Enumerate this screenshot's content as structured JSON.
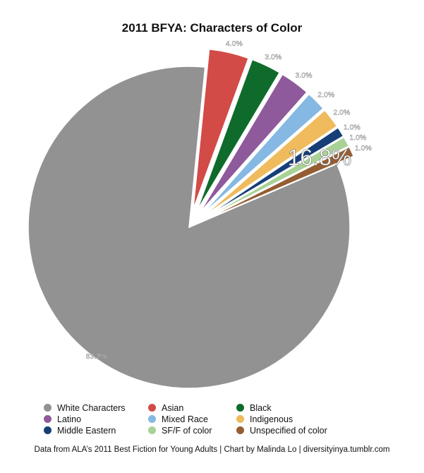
{
  "chart_data": {
    "type": "pie",
    "title": "2011 BFYA: Characters of Color",
    "slices": [
      {
        "name": "White Characters",
        "value": 83.2,
        "label": "83.2%",
        "color": "#929292"
      },
      {
        "name": "Asian",
        "value": 4.0,
        "label": "4.0%",
        "color": "#d24b46"
      },
      {
        "name": "Black",
        "value": 3.0,
        "label": "3.0%",
        "color": "#0f6b2b"
      },
      {
        "name": "Latino",
        "value": 3.0,
        "label": "3.0%",
        "color": "#8e5a9b"
      },
      {
        "name": "Mixed Race",
        "value": 2.0,
        "label": "2.0%",
        "color": "#85b8e2"
      },
      {
        "name": "Indigenous",
        "value": 2.0,
        "label": "2.0%",
        "color": "#efbb5d"
      },
      {
        "name": "Middle Eastern",
        "value": 1.0,
        "label": "1.0%",
        "color": "#163f78"
      },
      {
        "name": "SF/F of color",
        "value": 1.0,
        "label": "1.0%",
        "color": "#a9d296"
      },
      {
        "name": "Unspecified of color",
        "value": 1.0,
        "label": "1.0%",
        "color": "#955d33"
      }
    ],
    "annotation": "16.8%",
    "legend_position": "bottom"
  },
  "footer": {
    "source": "Data from ALA’s 2011 Best Fiction for Young Adults | Chart by Malinda Lo | diversityinya.tumblr.com"
  }
}
